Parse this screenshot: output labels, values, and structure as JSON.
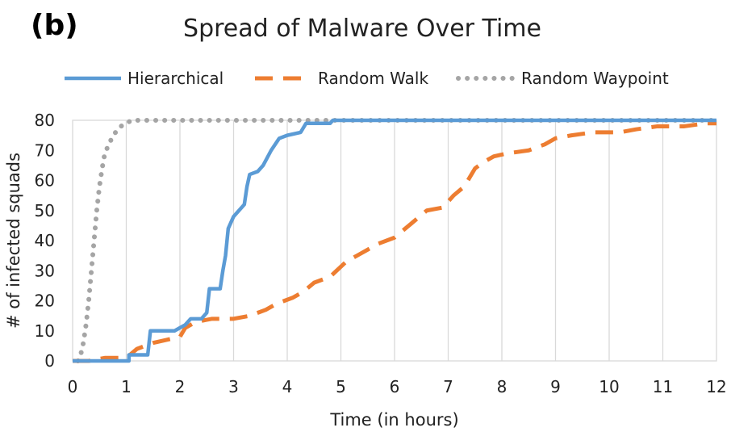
{
  "panel_label": "(b)",
  "chart_data": {
    "type": "line",
    "title": "Spread of Malware Over Time",
    "xlabel": "Time (in hours)",
    "ylabel": "# of infected squads",
    "xlim": [
      0,
      12
    ],
    "ylim": [
      0,
      80
    ],
    "x_ticks": [
      0,
      1,
      2,
      3,
      4,
      5,
      6,
      7,
      8,
      9,
      10,
      11,
      12
    ],
    "y_ticks": [
      0,
      10,
      20,
      30,
      40,
      50,
      60,
      70,
      80
    ],
    "grid": "vertical",
    "legend_position": "top",
    "series": [
      {
        "name": "Hierarchical",
        "color": "#5b9bd5",
        "line_style": "solid",
        "points": [
          [
            0,
            0
          ],
          [
            1.05,
            0
          ],
          [
            1.05,
            2
          ],
          [
            1.4,
            2
          ],
          [
            1.45,
            10
          ],
          [
            1.9,
            10
          ],
          [
            2.0,
            11
          ],
          [
            2.1,
            12
          ],
          [
            2.2,
            14
          ],
          [
            2.4,
            14
          ],
          [
            2.5,
            16
          ],
          [
            2.55,
            24
          ],
          [
            2.75,
            24
          ],
          [
            2.8,
            30
          ],
          [
            2.85,
            35
          ],
          [
            2.9,
            44
          ],
          [
            3.0,
            48
          ],
          [
            3.1,
            50
          ],
          [
            3.2,
            52
          ],
          [
            3.25,
            58
          ],
          [
            3.3,
            62
          ],
          [
            3.45,
            63
          ],
          [
            3.55,
            65
          ],
          [
            3.7,
            70
          ],
          [
            3.85,
            74
          ],
          [
            4.0,
            75
          ],
          [
            4.25,
            76
          ],
          [
            4.35,
            79
          ],
          [
            4.8,
            79
          ],
          [
            4.85,
            80
          ],
          [
            12,
            80
          ]
        ]
      },
      {
        "name": "Random Walk",
        "color": "#ed7d31",
        "line_style": "dashed",
        "points": [
          [
            0,
            0
          ],
          [
            0.3,
            0
          ],
          [
            0.6,
            1
          ],
          [
            1.0,
            1
          ],
          [
            1.2,
            4
          ],
          [
            1.35,
            5
          ],
          [
            1.5,
            6
          ],
          [
            1.75,
            7
          ],
          [
            2.0,
            8
          ],
          [
            2.1,
            11
          ],
          [
            2.3,
            13
          ],
          [
            2.6,
            14
          ],
          [
            3.0,
            14
          ],
          [
            3.3,
            15
          ],
          [
            3.6,
            17
          ],
          [
            3.8,
            19
          ],
          [
            4.1,
            21
          ],
          [
            4.3,
            23
          ],
          [
            4.5,
            26
          ],
          [
            4.8,
            28
          ],
          [
            5.1,
            33
          ],
          [
            5.3,
            35
          ],
          [
            5.5,
            37
          ],
          [
            5.7,
            39
          ],
          [
            6.0,
            41
          ],
          [
            6.2,
            44
          ],
          [
            6.4,
            47
          ],
          [
            6.6,
            50
          ],
          [
            6.9,
            51
          ],
          [
            7.1,
            55
          ],
          [
            7.3,
            58
          ],
          [
            7.5,
            64
          ],
          [
            7.65,
            66
          ],
          [
            7.85,
            68
          ],
          [
            8.1,
            69
          ],
          [
            8.5,
            70
          ],
          [
            8.8,
            72
          ],
          [
            9.0,
            74
          ],
          [
            9.3,
            75
          ],
          [
            9.7,
            76
          ],
          [
            10.2,
            76
          ],
          [
            10.5,
            77
          ],
          [
            10.9,
            78
          ],
          [
            11.4,
            78
          ],
          [
            11.8,
            79
          ],
          [
            12.0,
            79
          ]
        ]
      },
      {
        "name": "Random Waypoint",
        "color": "#a5a5a5",
        "line_style": "dotted",
        "points": [
          [
            0.1,
            0
          ],
          [
            0.15,
            2
          ],
          [
            0.2,
            6
          ],
          [
            0.25,
            12
          ],
          [
            0.3,
            20
          ],
          [
            0.35,
            30
          ],
          [
            0.4,
            40
          ],
          [
            0.45,
            50
          ],
          [
            0.5,
            58
          ],
          [
            0.55,
            64
          ],
          [
            0.6,
            69
          ],
          [
            0.7,
            73
          ],
          [
            0.8,
            76
          ],
          [
            0.9,
            78
          ],
          [
            1.0,
            79
          ],
          [
            1.1,
            80
          ],
          [
            12,
            80
          ]
        ]
      }
    ]
  }
}
